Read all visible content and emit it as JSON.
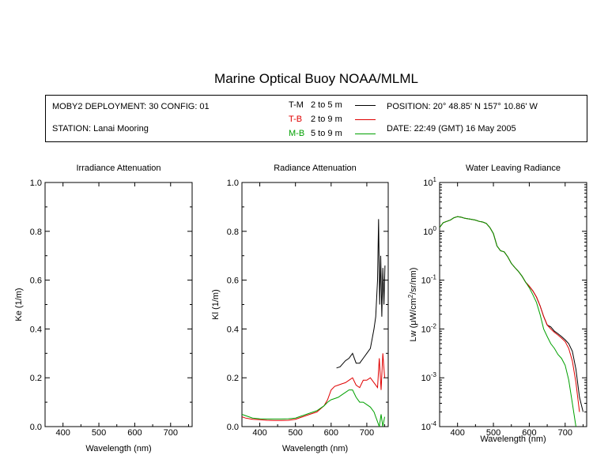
{
  "title": "Marine Optical Buoy NOAA/MLML",
  "info": {
    "deployment": "MOBY2 DEPLOYMENT: 30 CONFIG: 01",
    "station": "STATION: Lanai Mooring",
    "position": "POSITION: 20° 48.85' N   157° 10.86' W",
    "date": "DATE: 22:49 (GMT) 16 May 2005"
  },
  "legend": [
    {
      "code": "T-M",
      "range": "2 to 5  m",
      "color": "#000000"
    },
    {
      "code": "T-B",
      "range": "2 to 9  m",
      "color": "#e00000"
    },
    {
      "code": "M-B",
      "range": "5 to 9  m",
      "color": "#00a000"
    }
  ],
  "chart_data": [
    {
      "type": "line",
      "title": "Irradiance Attenuation",
      "xlabel": "Wavelength (nm)",
      "ylabel": "Ke  (1/m)",
      "xlim": [
        350,
        760
      ],
      "ylim": [
        0,
        1.0
      ],
      "xticks": [
        "400",
        "500",
        "600",
        "700"
      ],
      "yticks": [
        "0.0",
        "0.2",
        "0.4",
        "0.6",
        "0.8",
        "1.0"
      ],
      "series": []
    },
    {
      "type": "line",
      "title": "Radiance Attenuation",
      "xlabel": "Wavelength (nm)",
      "ylabel": "Kl  (1/m)",
      "xlim": [
        350,
        760
      ],
      "ylim": [
        0,
        1.0
      ],
      "xticks": [
        "400",
        "500",
        "600",
        "700"
      ],
      "yticks": [
        "0.0",
        "0.2",
        "0.4",
        "0.6",
        "0.8",
        "1.0"
      ],
      "series": [
        {
          "name": "T-M",
          "color": "#000000",
          "x": [
            615,
            625,
            640,
            650,
            660,
            670,
            680,
            690,
            700,
            710,
            715,
            720,
            725,
            730,
            733,
            736,
            739,
            742,
            745,
            748,
            751
          ],
          "y": [
            0.24,
            0.245,
            0.27,
            0.28,
            0.3,
            0.26,
            0.26,
            0.28,
            0.3,
            0.32,
            0.36,
            0.4,
            0.45,
            0.6,
            0.85,
            0.5,
            0.7,
            0.45,
            0.65,
            0.5,
            0.66
          ]
        },
        {
          "name": "T-B",
          "color": "#e00000",
          "x": [
            350,
            360,
            380,
            400,
            420,
            440,
            460,
            480,
            500,
            520,
            540,
            560,
            580,
            590,
            600,
            610,
            620,
            630,
            640,
            650,
            660,
            670,
            680,
            690,
            700,
            710,
            720,
            730,
            735,
            740,
            745,
            750
          ],
          "y": [
            0.04,
            0.035,
            0.03,
            0.028,
            0.026,
            0.025,
            0.025,
            0.026,
            0.03,
            0.04,
            0.05,
            0.06,
            0.085,
            0.11,
            0.15,
            0.165,
            0.17,
            0.175,
            0.18,
            0.19,
            0.2,
            0.17,
            0.16,
            0.19,
            0.19,
            0.2,
            0.18,
            0.16,
            0.28,
            0.15,
            0.3,
            0.2
          ]
        },
        {
          "name": "M-B",
          "color": "#00a000",
          "x": [
            350,
            360,
            380,
            400,
            420,
            440,
            460,
            480,
            500,
            520,
            540,
            560,
            580,
            590,
            600,
            610,
            620,
            630,
            640,
            650,
            660,
            670,
            680,
            690,
            700,
            710,
            720,
            725,
            730,
            735,
            740,
            745,
            750
          ],
          "y": [
            0.05,
            0.045,
            0.035,
            0.032,
            0.031,
            0.031,
            0.031,
            0.032,
            0.035,
            0.045,
            0.055,
            0.065,
            0.085,
            0.1,
            0.11,
            0.115,
            0.12,
            0.13,
            0.14,
            0.15,
            0.15,
            0.12,
            0.1,
            0.1,
            0.09,
            0.08,
            0.06,
            0.04,
            0.02,
            0.0,
            0.05,
            0.0,
            0.04
          ]
        }
      ]
    },
    {
      "type": "line",
      "title": "Water Leaving Radiance",
      "xlabel": "Wavelength (nm)",
      "ylabel": "Lw  (μW/cm²/sr/nm)",
      "yscale": "log",
      "xlim": [
        350,
        760
      ],
      "ylim": [
        0.0001,
        10
      ],
      "xticks": [
        "400",
        "500",
        "600",
        "700"
      ],
      "yticks": [
        "10^-4",
        "10^-3",
        "10^-2",
        "10^-1",
        "10^0",
        "10^1"
      ],
      "series": [
        {
          "name": "T-M",
          "color": "#000000",
          "x": [
            350,
            360,
            370,
            380,
            390,
            400,
            410,
            420,
            430,
            440,
            450,
            460,
            470,
            480,
            490,
            500,
            510,
            520,
            530,
            540,
            550,
            560,
            570,
            580,
            590,
            600,
            610,
            620,
            630,
            640,
            650,
            660,
            670,
            680,
            690,
            700,
            710,
            720,
            730,
            740,
            750
          ],
          "y": [
            1.2,
            1.5,
            1.6,
            1.7,
            1.9,
            2.0,
            1.95,
            1.85,
            1.8,
            1.75,
            1.7,
            1.6,
            1.55,
            1.45,
            1.2,
            0.9,
            0.5,
            0.4,
            0.38,
            0.3,
            0.22,
            0.18,
            0.15,
            0.12,
            0.09,
            0.075,
            0.06,
            0.045,
            0.03,
            0.018,
            0.012,
            0.011,
            0.009,
            0.008,
            0.007,
            0.006,
            0.005,
            0.0035,
            0.0015,
            0.0004,
            0.0002
          ]
        },
        {
          "name": "T-B",
          "color": "#e00000",
          "x": [
            350,
            360,
            370,
            380,
            390,
            400,
            410,
            420,
            430,
            440,
            450,
            460,
            470,
            480,
            490,
            500,
            510,
            520,
            530,
            540,
            550,
            560,
            570,
            580,
            590,
            600,
            610,
            620,
            630,
            640,
            650,
            660,
            670,
            680,
            690,
            700,
            710,
            720,
            730,
            740
          ],
          "y": [
            1.2,
            1.5,
            1.6,
            1.7,
            1.9,
            2.0,
            1.95,
            1.85,
            1.8,
            1.75,
            1.7,
            1.6,
            1.55,
            1.45,
            1.2,
            0.9,
            0.5,
            0.4,
            0.38,
            0.3,
            0.22,
            0.18,
            0.15,
            0.12,
            0.09,
            0.075,
            0.06,
            0.045,
            0.03,
            0.018,
            0.012,
            0.01,
            0.0085,
            0.0075,
            0.0065,
            0.0055,
            0.004,
            0.0022,
            0.0008,
            0.0002
          ]
        },
        {
          "name": "M-B",
          "color": "#00a000",
          "x": [
            350,
            360,
            370,
            380,
            390,
            400,
            410,
            420,
            430,
            440,
            450,
            460,
            470,
            480,
            490,
            500,
            510,
            520,
            530,
            540,
            550,
            560,
            570,
            580,
            590,
            600,
            610,
            620,
            630,
            640,
            650,
            660,
            670,
            680,
            690,
            700,
            710,
            720,
            730
          ],
          "y": [
            1.2,
            1.5,
            1.6,
            1.7,
            1.9,
            2.0,
            1.95,
            1.85,
            1.8,
            1.75,
            1.7,
            1.6,
            1.55,
            1.45,
            1.2,
            0.9,
            0.5,
            0.4,
            0.38,
            0.3,
            0.22,
            0.18,
            0.15,
            0.12,
            0.09,
            0.07,
            0.05,
            0.035,
            0.02,
            0.01,
            0.007,
            0.005,
            0.004,
            0.003,
            0.0025,
            0.0018,
            0.0009,
            0.0003,
            0.0001
          ]
        }
      ]
    }
  ]
}
